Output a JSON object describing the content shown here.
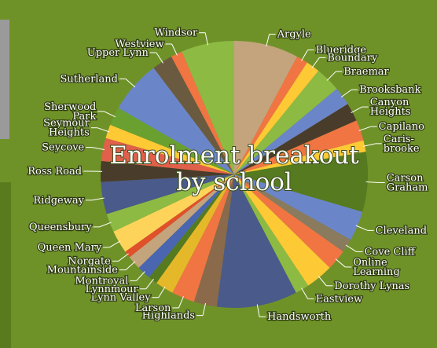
{
  "chart_data": {
    "type": "pie",
    "title": "Enrolment breakout\nby school",
    "categories": [
      "Argyle",
      "Blueridge",
      "Boundary",
      "Braemar",
      "Brooksbank",
      "Canyon\nHeights",
      "Capilano",
      "Caris-\nbrooke",
      "Carson\nGraham",
      "Cleveland",
      "Cove Cliff",
      "Online\nLearning",
      "Dorothy Lynas",
      "Eastview",
      "Handsworth",
      "Highlands",
      "Larson",
      "Lynn Valley",
      "Lynnmour",
      "Montroyal",
      "Mountainside",
      "Norgate",
      "Queen Mary",
      "Queensbury",
      "Ridgeway",
      "Ross Road",
      "Seycove",
      "Seymour\nHeights",
      "Sherwood\nPark",
      "Sutherland",
      "Upper Lynn",
      "Westview",
      "Windsor"
    ],
    "values": [
      28,
      5,
      6,
      11,
      8,
      8,
      9,
      5,
      26,
      13,
      6,
      9,
      12,
      6,
      35,
      10,
      10,
      8,
      4,
      6,
      6,
      3,
      10,
      8,
      14,
      9,
      10,
      6,
      8,
      23,
      9,
      5,
      23
    ],
    "colors": [
      "#c4a47c",
      "#f07543",
      "#fdc935",
      "#8dba43",
      "#6b85c9",
      "#4a3c2a",
      "#f07543",
      "#fdc935",
      "#557a1f",
      "#6b85c9",
      "#8a7a5e",
      "#f07543",
      "#fdc935",
      "#8dba43",
      "#4a5a8a",
      "#8a6a4a",
      "#f07543",
      "#e5b82a",
      "#557a1f",
      "#4a66b0",
      "#c4a47c",
      "#e0502a",
      "#fdd35a",
      "#8dba43",
      "#4a5a8a",
      "#4a3c2a",
      "#e0604a",
      "#fdc935",
      "#6aa030",
      "#6b85c9",
      "#6a5a40",
      "#f07543",
      "#8dba43"
    ]
  }
}
